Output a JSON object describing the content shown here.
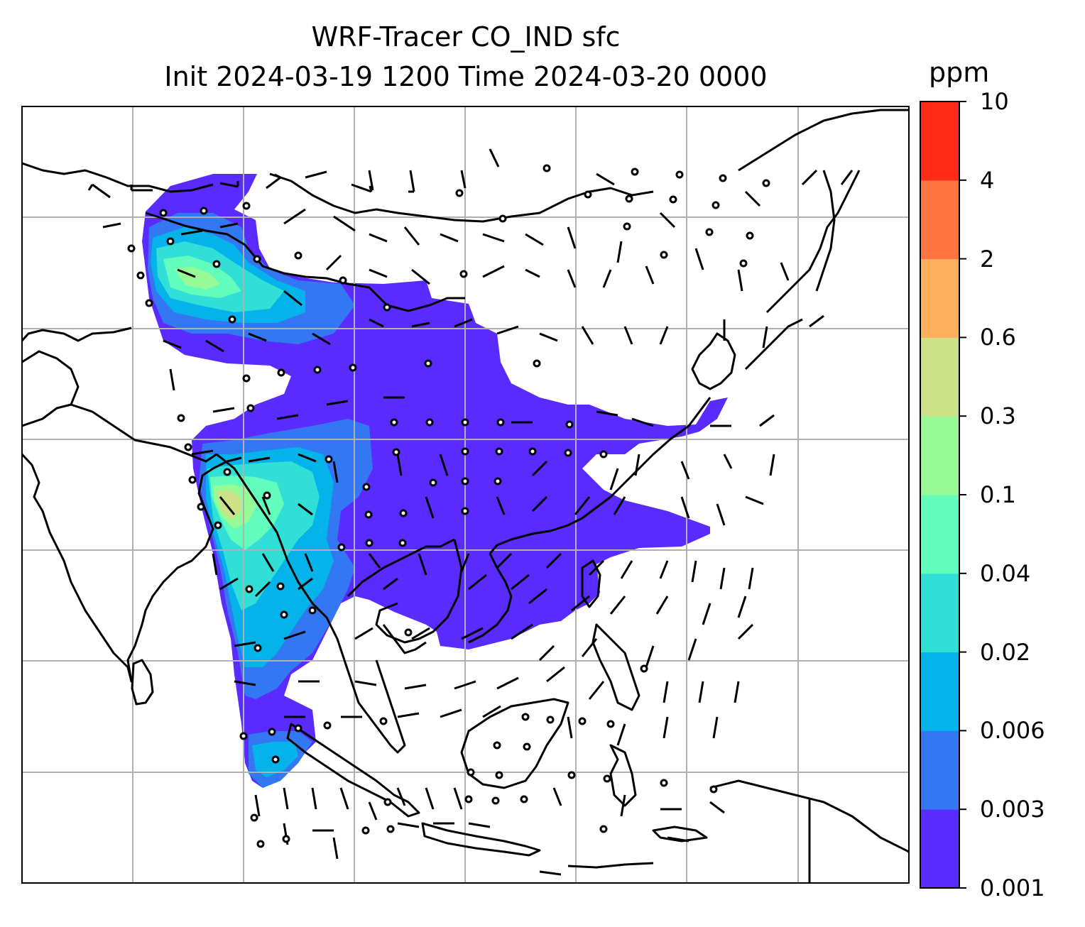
{
  "title": {
    "line1": "WRF-Tracer CO_IND sfc",
    "line2": "Init 2024-03-19 1200 Time 2024-03-20 0000"
  },
  "colorbar": {
    "unit": "ppm",
    "levels": [
      "0.001",
      "0.003",
      "0.006",
      "0.02",
      "0.04",
      "0.1",
      "0.3",
      "0.6",
      "2",
      "4",
      "10"
    ],
    "colors": [
      "#5a2bff",
      "#3377f2",
      "#04b3e9",
      "#32dfd6",
      "#62fdbd",
      "#96fb96",
      "#cde188",
      "#ffb05e",
      "#ff7440",
      "#ff2a17"
    ]
  },
  "map": {
    "gridlines": true,
    "coastline_color": "#000000",
    "grid_color": "#b0b0b0"
  }
}
